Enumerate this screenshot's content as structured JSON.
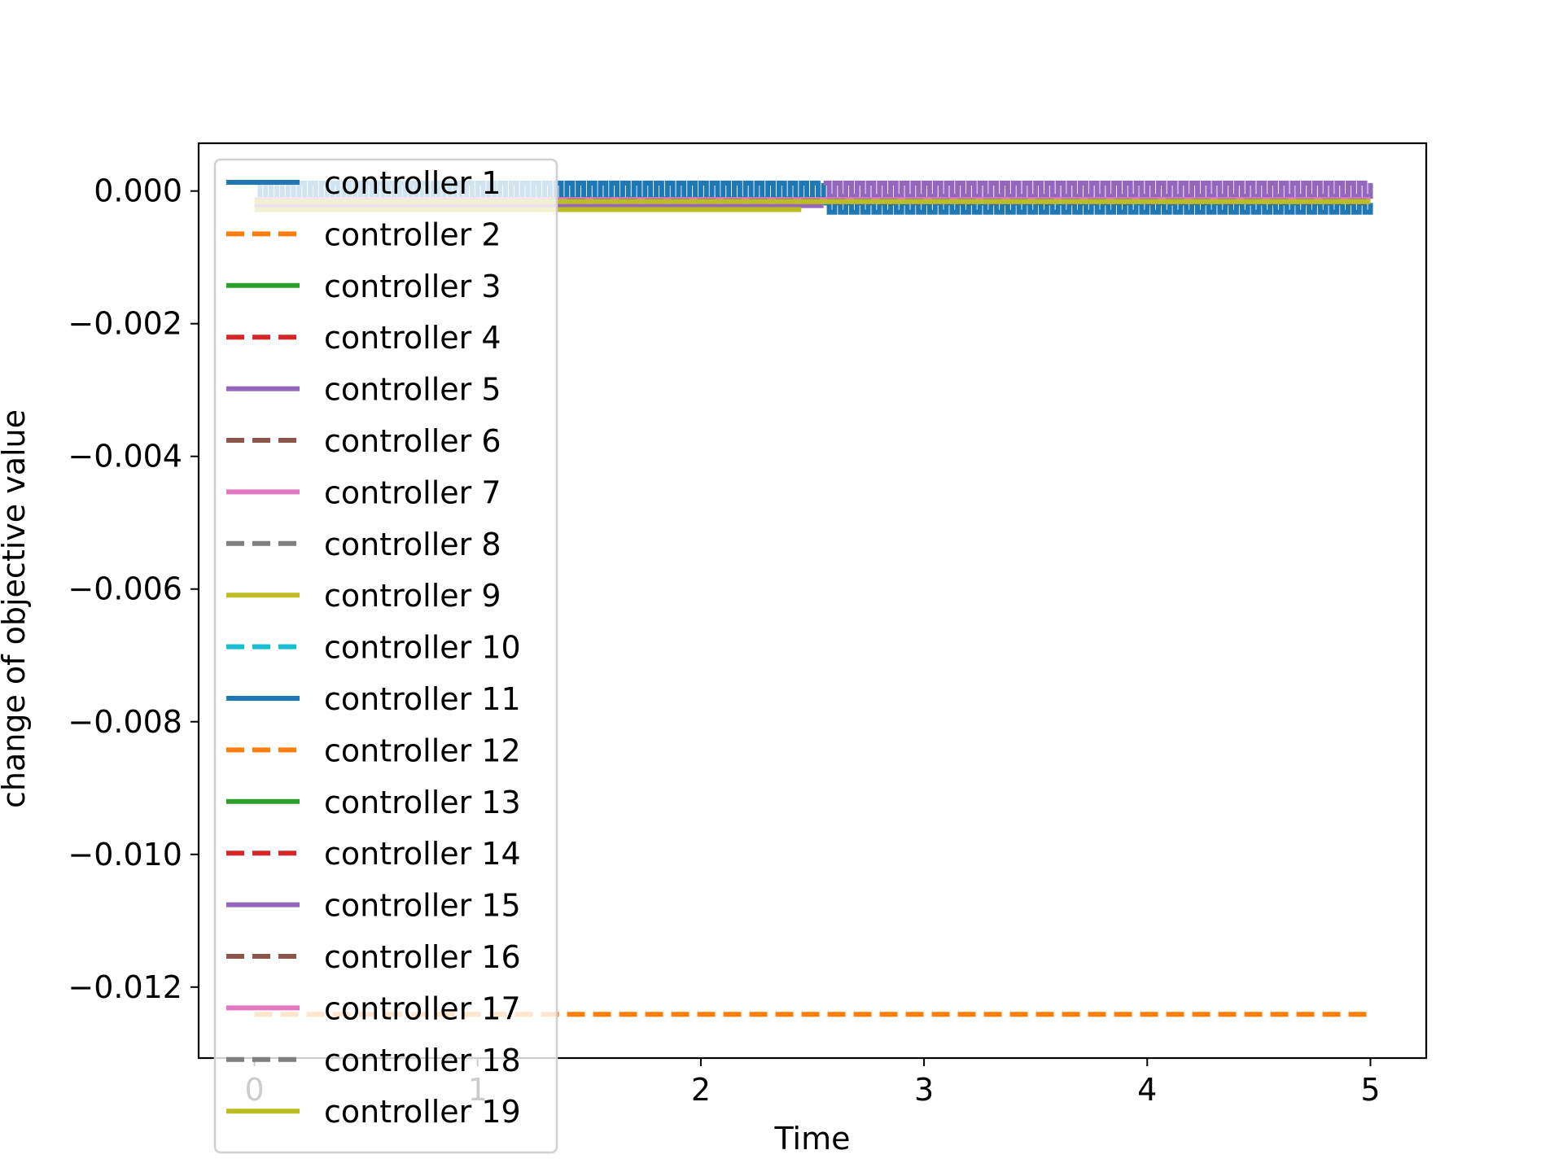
{
  "chart_data": {
    "type": "line",
    "title": "",
    "xlabel": "Time",
    "ylabel": "change of objective value",
    "xlim": [
      -0.25,
      5.25
    ],
    "ylim": [
      -0.01307,
      0.00072
    ],
    "xticks": [
      0,
      1,
      2,
      3,
      4,
      5
    ],
    "xtick_labels": [
      "0",
      "1",
      "2",
      "3",
      "4",
      "5"
    ],
    "yticks": [
      0.0,
      -0.002,
      -0.004,
      -0.006,
      -0.008,
      -0.01,
      -0.012
    ],
    "ytick_labels": [
      "0.000",
      "−0.002",
      "−0.004",
      "−0.006",
      "−0.008",
      "−0.010",
      "−0.012"
    ],
    "grid": false,
    "legend_position": "upper-left",
    "x_range": [
      0,
      5
    ],
    "series": [
      {
        "name": "controller 1",
        "color": "#1f77b4",
        "dash": "solid",
        "segments": [
          {
            "x0": 0,
            "x1": 2.55,
            "hi": 0.00012,
            "lo": -0.00012
          },
          {
            "x0": 2.55,
            "x1": 5.0,
            "hi": -0.00018,
            "lo": -0.00032
          }
        ]
      },
      {
        "name": "controller 2",
        "color": "#ff7f0e",
        "dash": "dashed",
        "segments": [
          {
            "x0": 0,
            "x1": 5.0,
            "hi": -0.01241,
            "lo": -0.01241
          }
        ]
      },
      {
        "name": "controller 3",
        "color": "#2ca02c",
        "dash": "solid",
        "segments": [
          {
            "x0": 0,
            "x1": 5.0,
            "hi": -0.00015,
            "lo": -0.00015
          }
        ]
      },
      {
        "name": "controller 4",
        "color": "#d62728",
        "dash": "dashed",
        "segments": [
          {
            "x0": 0,
            "x1": 5.0,
            "hi": -0.00016,
            "lo": -0.00016
          }
        ]
      },
      {
        "name": "controller 5",
        "color": "#9467bd",
        "dash": "solid",
        "segments": [
          {
            "x0": 0,
            "x1": 2.55,
            "hi": -0.00022,
            "lo": -0.00022
          },
          {
            "x0": 2.55,
            "x1": 5.0,
            "hi": 0.00012,
            "lo": -8e-05
          }
        ]
      },
      {
        "name": "controller 6",
        "color": "#8c564b",
        "dash": "dashed",
        "segments": [
          {
            "x0": 0,
            "x1": 5.0,
            "hi": -0.00014,
            "lo": -0.00014
          }
        ]
      },
      {
        "name": "controller 7",
        "color": "#e377c2",
        "dash": "solid",
        "segments": [
          {
            "x0": 0,
            "x1": 5.0,
            "hi": -0.00013,
            "lo": -0.00013
          }
        ]
      },
      {
        "name": "controller 8",
        "color": "#7f7f7f",
        "dash": "dashed",
        "segments": [
          {
            "x0": 0,
            "x1": 5.0,
            "hi": -0.00015,
            "lo": -0.00015
          }
        ]
      },
      {
        "name": "controller 9",
        "color": "#bcbd22",
        "dash": "solid",
        "segments": [
          {
            "x0": 0,
            "x1": 2.45,
            "hi": -0.00028,
            "lo": -0.00028
          },
          {
            "x0": 2.45,
            "x1": 5.0,
            "hi": -0.00016,
            "lo": -0.00016
          }
        ]
      },
      {
        "name": "controller 10",
        "color": "#17becf",
        "dash": "dashed",
        "segments": [
          {
            "x0": 0,
            "x1": 5.0,
            "hi": -0.00014,
            "lo": -0.00014
          }
        ]
      },
      {
        "name": "controller 11",
        "color": "#1f77b4",
        "dash": "solid",
        "segments": [
          {
            "x0": 0,
            "x1": 5.0,
            "hi": -0.00013,
            "lo": -0.00013
          }
        ]
      },
      {
        "name": "controller 12",
        "color": "#ff7f0e",
        "dash": "dashed",
        "segments": [
          {
            "x0": 0,
            "x1": 5.0,
            "hi": -0.00014,
            "lo": -0.00014
          }
        ]
      },
      {
        "name": "controller 13",
        "color": "#2ca02c",
        "dash": "solid",
        "segments": [
          {
            "x0": 0,
            "x1": 5.0,
            "hi": -0.00015,
            "lo": -0.00015
          }
        ]
      },
      {
        "name": "controller 14",
        "color": "#d62728",
        "dash": "dashed",
        "segments": [
          {
            "x0": 0,
            "x1": 5.0,
            "hi": -0.00016,
            "lo": -0.00016
          }
        ]
      },
      {
        "name": "controller 15",
        "color": "#9467bd",
        "dash": "solid",
        "segments": [
          {
            "x0": 0,
            "x1": 5.0,
            "hi": -0.00015,
            "lo": -0.00015
          }
        ]
      },
      {
        "name": "controller 16",
        "color": "#8c564b",
        "dash": "dashed",
        "segments": [
          {
            "x0": 0,
            "x1": 5.0,
            "hi": -0.00014,
            "lo": -0.00014
          }
        ]
      },
      {
        "name": "controller 17",
        "color": "#e377c2",
        "dash": "solid",
        "segments": [
          {
            "x0": 0,
            "x1": 5.0,
            "hi": -0.00013,
            "lo": -0.00013
          }
        ]
      },
      {
        "name": "controller 18",
        "color": "#7f7f7f",
        "dash": "dashed",
        "segments": [
          {
            "x0": 0,
            "x1": 5.0,
            "hi": -0.00015,
            "lo": -0.00015
          }
        ]
      },
      {
        "name": "controller 19",
        "color": "#bcbd22",
        "dash": "solid",
        "segments": [
          {
            "x0": 0,
            "x1": 5.0,
            "hi": -0.00016,
            "lo": -0.00016
          }
        ]
      }
    ]
  }
}
